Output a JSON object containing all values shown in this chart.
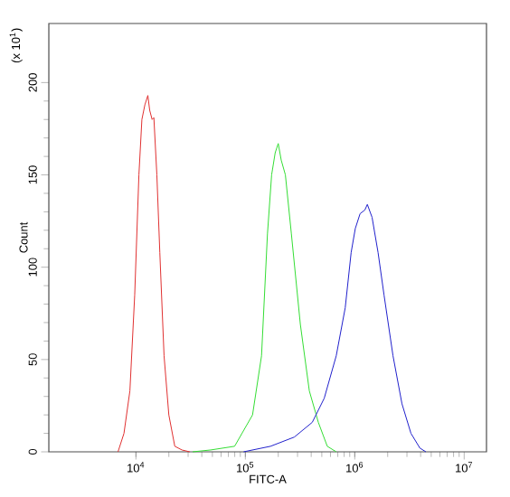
{
  "chart_data": {
    "type": "line",
    "xlabel": "FITC-A",
    "ylabel": "Count",
    "annotations": [
      "(x 10$^{1}$)"
    ],
    "log": "x",
    "grid": false,
    "marker": "none",
    "line_style": "solid",
    "xlim": [
      1600,
      16000000
    ],
    "ylim": [
      0,
      232
    ],
    "xticks": [
      {
        "value": 10000,
        "label": "10$^{4}$"
      },
      {
        "value": 100000,
        "label": "10$^{5}$"
      },
      {
        "value": 1000000,
        "label": "10$^{6}$"
      },
      {
        "value": 10000000,
        "label": "10$^{7}$"
      }
    ],
    "yticks": [
      0,
      50,
      100,
      150,
      200
    ],
    "series": [
      {
        "color": "#e03030",
        "x": [
          6860,
          7780,
          8810,
          9750,
          10650,
          11340,
          12080,
          12860,
          13360,
          14060,
          14590,
          15540,
          16540,
          18080,
          19990,
          22660,
          26350,
          31050
        ],
        "values": [
          0,
          10,
          33,
          85,
          150,
          180,
          188,
          193,
          185,
          180,
          181,
          150,
          108,
          52,
          20,
          3,
          1,
          0
        ]
      },
      {
        "color": "#33dd33",
        "x": [
          33040,
          48170,
          79800,
          116400,
          140600,
          159300,
          173900,
          187500,
          199900,
          212800,
          232300,
          263600,
          318400,
          384600,
          464500,
          561000,
          677300
        ],
        "values": [
          0,
          1,
          3,
          20,
          52,
          118,
          150,
          162,
          167,
          158,
          150,
          118,
          69,
          33,
          16,
          3,
          0
        ]
      },
      {
        "color": "#2020cc",
        "x": [
          96400,
          169800,
          280600,
          409300,
          526000,
          677300,
          818400,
          927200,
          1012000,
          1119000,
          1238000,
          1303000,
          1440000,
          1633000,
          1852000,
          2237000,
          2702000,
          3263000,
          3942000,
          4467000
        ],
        "values": [
          0,
          3,
          8,
          16,
          29,
          52,
          78,
          108,
          121,
          129,
          131,
          134,
          127,
          108,
          85,
          52,
          26,
          10,
          2,
          0
        ]
      }
    ]
  }
}
